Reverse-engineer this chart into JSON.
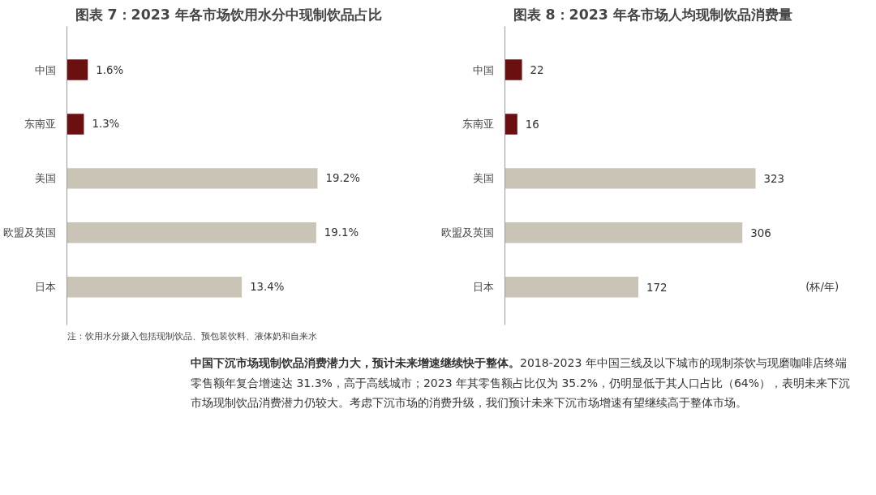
{
  "chart_data": [
    {
      "type": "bar",
      "orientation": "horizontal",
      "title": "图表 7：2023 年各市场饮用水分中现制饮品占比",
      "categories": [
        "中国",
        "东南亚",
        "美国",
        "欧盟及英国",
        "日本"
      ],
      "values": [
        1.6,
        1.3,
        19.2,
        19.1,
        13.4
      ],
      "colors": [
        "#6b0f10",
        "#6b0f10",
        "#c9c4b5",
        "#c9c4b5",
        "#c9c4b5"
      ],
      "value_labels": [
        "1.6%",
        "1.3%",
        "19.2%",
        "19.1%",
        "13.4%"
      ],
      "annotations": [
        "注：饮用水分摄入包括现制饮品、预包装饮料、液体奶和自来水"
      ]
    },
    {
      "type": "bar",
      "orientation": "horizontal",
      "title": "图表 8：2023 年各市场人均现制饮品消费量",
      "categories": [
        "中国",
        "东南亚",
        "美国",
        "欧盟及英国",
        "日本"
      ],
      "values": [
        22,
        16,
        323,
        306,
        172
      ],
      "colors": [
        "#6b0f10",
        "#6b0f10",
        "#c9c4b5",
        "#c9c4b5",
        "#c9c4b5"
      ],
      "data_labels": true,
      "annotations": [
        "(杯/年)"
      ]
    },
    {
      "type": "other",
      "title": "中国下沉市场现制饮品消费潜力大，预计未来增速继续快于整体。",
      "annotations": [
        "2018-2023 年中国三线及以下城市的现制茶饮与现磨咖啡店终端零售额年复合增速达 31.3%，高于高线城市；2023 年其零售额占比仅为 35.2%，仍明显低于其人口占比（64%），表明未来下沉市场现制饮品消费潜力仍较大。考虑下沉市场的消费升级，我们预计未来下沉市场增速有望继续高于整体市场。"
      ]
    }
  ]
}
